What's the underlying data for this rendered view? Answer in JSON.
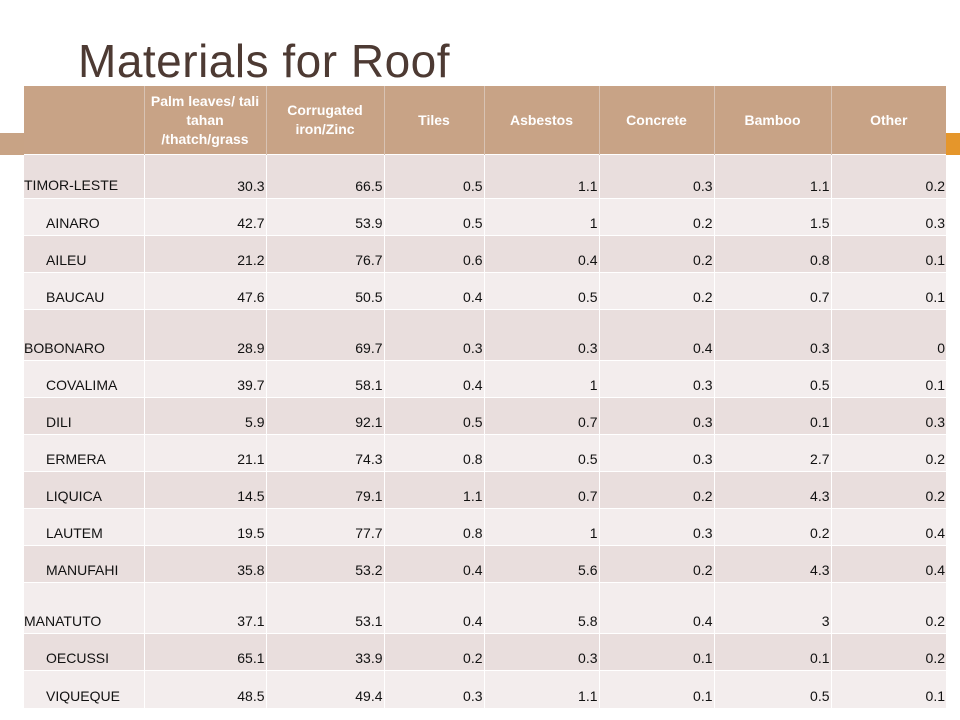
{
  "slide": {
    "title": "Materials for Roof"
  },
  "table": {
    "headers": [
      "",
      "Palm leaves/ tali tahan /thatch/grass",
      "Corrugated iron/Zinc",
      "Tiles",
      "Asbestos",
      "Concrete",
      "Bamboo",
      "Other"
    ],
    "rows": [
      {
        "name": "TIMOR-LESTE",
        "values": [
          "30.3",
          "66.5",
          "0.5",
          "1.1",
          "0.3",
          "1.1",
          "0.2"
        ]
      },
      {
        "name": "AINARO",
        "values": [
          "42.7",
          "53.9",
          "0.5",
          "1",
          "0.2",
          "1.5",
          "0.3"
        ]
      },
      {
        "name": "AILEU",
        "values": [
          "21.2",
          "76.7",
          "0.6",
          "0.4",
          "0.2",
          "0.8",
          "0.1"
        ]
      },
      {
        "name": "BAUCAU",
        "values": [
          "47.6",
          "50.5",
          "0.4",
          "0.5",
          "0.2",
          "0.7",
          "0.1"
        ]
      },
      {
        "name": "BOBONARO",
        "values": [
          "28.9",
          "69.7",
          "0.3",
          "0.3",
          "0.4",
          "0.3",
          "0"
        ]
      },
      {
        "name": "COVALIMA",
        "values": [
          "39.7",
          "58.1",
          "0.4",
          "1",
          "0.3",
          "0.5",
          "0.1"
        ]
      },
      {
        "name": "DILI",
        "values": [
          "5.9",
          "92.1",
          "0.5",
          "0.7",
          "0.3",
          "0.1",
          "0.3"
        ]
      },
      {
        "name": "ERMERA",
        "values": [
          "21.1",
          "74.3",
          "0.8",
          "0.5",
          "0.3",
          "2.7",
          "0.2"
        ]
      },
      {
        "name": "LIQUICA",
        "values": [
          "14.5",
          "79.1",
          "1.1",
          "0.7",
          "0.2",
          "4.3",
          "0.2"
        ]
      },
      {
        "name": "LAUTEM",
        "values": [
          "19.5",
          "77.7",
          "0.8",
          "1",
          "0.3",
          "0.2",
          "0.4"
        ]
      },
      {
        "name": "MANUFAHI",
        "values": [
          "35.8",
          "53.2",
          "0.4",
          "5.6",
          "0.2",
          "4.3",
          "0.4"
        ]
      },
      {
        "name": "MANATUTO",
        "values": [
          "37.1",
          "53.1",
          "0.4",
          "5.8",
          "0.4",
          "3",
          "0.2"
        ]
      },
      {
        "name": "OECUSSI",
        "values": [
          "65.1",
          "33.9",
          "0.2",
          "0.3",
          "0.1",
          "0.1",
          "0.2"
        ]
      },
      {
        "name": "VIQUEQUE",
        "values": [
          "48.5",
          "49.4",
          "0.3",
          "1.1",
          "0.1",
          "0.5",
          "0.1"
        ]
      }
    ]
  },
  "colors": {
    "header_bg": "#c8a386",
    "row_band_a": "#e9dedd",
    "row_band_b": "#f3eded",
    "title_text": "#4d3a33",
    "accent_orange": "#e5962b"
  }
}
